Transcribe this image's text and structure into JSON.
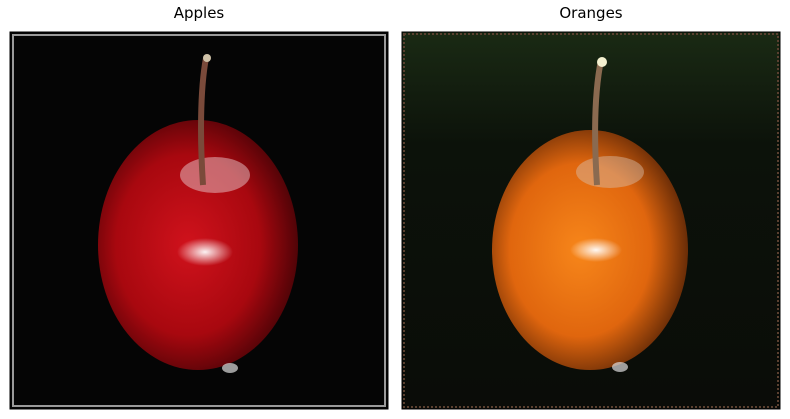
{
  "panels": [
    {
      "title": "Apples"
    },
    {
      "title": "Oranges"
    }
  ]
}
